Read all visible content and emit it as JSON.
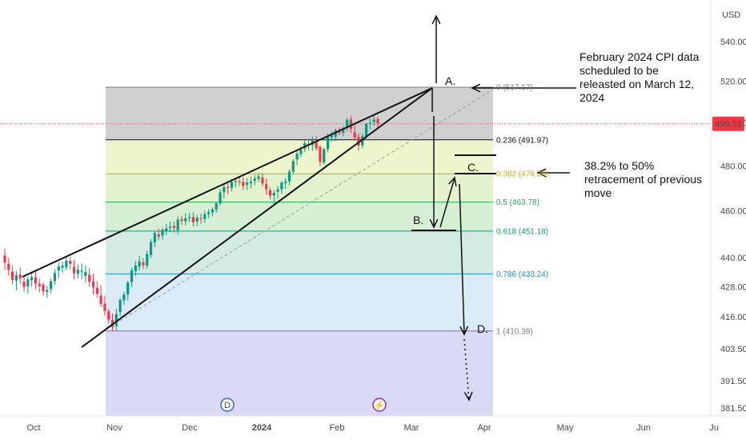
{
  "chart_data": {
    "type": "candlestick",
    "currency": "USD",
    "current_price": "499.51",
    "y_ticks": [
      "540.00",
      "520.00",
      "500.00",
      "480.00",
      "460.00",
      "440.00",
      "428.00",
      "416.00",
      "403.50",
      "391.50",
      "381.50"
    ],
    "x_ticks": [
      "Oct",
      "Nov",
      "Dec",
      "2024",
      "Feb",
      "Mar",
      "Apr",
      "May",
      "Jun",
      "Ju"
    ],
    "y_scale": "log",
    "fib_levels": [
      {
        "ratio": 0,
        "price": 517.17,
        "label": "0 (517.17)",
        "color": "#787b86"
      },
      {
        "ratio": 0.236,
        "price": 491.97,
        "label": "0.236 (491.97)",
        "color": "#111111"
      },
      {
        "ratio": 0.382,
        "price": 476.38,
        "label": "0.382 (476.38)",
        "color": "#b3b31a"
      },
      {
        "ratio": 0.5,
        "price": 463.78,
        "label": "0.5 (463.78)",
        "color": "#22a85a"
      },
      {
        "ratio": 0.618,
        "price": 451.18,
        "label": "0.618 (451.18)",
        "color": "#0a9980"
      },
      {
        "ratio": 0.786,
        "price": 433.24,
        "label": "0.786 (433.24)",
        "color": "#1d8fd0"
      },
      {
        "ratio": 1,
        "price": 410.39,
        "label": "1 (410.39)",
        "color": "#787b86"
      }
    ],
    "fib_zone_colors": [
      "#c8c8c8",
      "#eaf3c4",
      "#dcf0c4",
      "#cfeccd",
      "#cce8de",
      "#d4e6f5",
      "#e3e3e3",
      "#d3d3f6"
    ],
    "candles_ohlc": [
      [
        440.9,
        443.8,
        434.8,
        437.9
      ],
      [
        437.4,
        439.9,
        432.5,
        434.9
      ],
      [
        434.2,
        436.7,
        429.0,
        430.8
      ],
      [
        430.5,
        434.4,
        426.6,
        432.6
      ],
      [
        433.0,
        435.8,
        429.1,
        431.3
      ],
      [
        430.1,
        432.6,
        426.0,
        427.9
      ],
      [
        428.1,
        432.2,
        425.2,
        431.0
      ],
      [
        430.7,
        434.1,
        428.1,
        431.9
      ],
      [
        431.9,
        434.7,
        427.0,
        429.3
      ],
      [
        429.2,
        431.4,
        425.7,
        428.2
      ],
      [
        428.8,
        429.8,
        424.4,
        426.1
      ],
      [
        425.9,
        428.4,
        423.6,
        426.6
      ],
      [
        427.1,
        431.4,
        425.4,
        430.2
      ],
      [
        430.3,
        435.1,
        428.8,
        433.6
      ],
      [
        434.6,
        438.1,
        431.5,
        436.3
      ],
      [
        435.8,
        438.3,
        433.7,
        436.7
      ],
      [
        436.0,
        440.6,
        434.7,
        438.7
      ],
      [
        438.6,
        440.3,
        435.1,
        437.4
      ],
      [
        436.1,
        439.1,
        431.0,
        433.5
      ],
      [
        433.3,
        437.2,
        431.3,
        435.0
      ],
      [
        434.2,
        437.6,
        431.2,
        434.7
      ],
      [
        432.4,
        436.7,
        429.7,
        434.0
      ],
      [
        432.9,
        435.6,
        427.9,
        430.0
      ],
      [
        430.2,
        433.5,
        424.8,
        427.7
      ],
      [
        427.6,
        430.3,
        423.6,
        425.1
      ],
      [
        424.4,
        428.6,
        419.8,
        421.0
      ],
      [
        421.2,
        424.4,
        416.4,
        418.3
      ],
      [
        418.2,
        419.3,
        413.4,
        414.9
      ],
      [
        414.7,
        417.2,
        410.4,
        411.9
      ],
      [
        412.3,
        419.1,
        410.7,
        417.0
      ],
      [
        417.8,
        423.4,
        416.1,
        422.7
      ],
      [
        422.5,
        426.0,
        420.6,
        424.8
      ],
      [
        424.9,
        430.4,
        422.5,
        429.7
      ],
      [
        429.9,
        435.8,
        427.9,
        434.7
      ],
      [
        434.4,
        438.6,
        432.3,
        436.7
      ],
      [
        436.3,
        440.7,
        434.6,
        438.4
      ],
      [
        438.1,
        439.8,
        435.2,
        436.8
      ],
      [
        436.6,
        442.9,
        435.5,
        441.4
      ],
      [
        441.1,
        447.8,
        439.9,
        446.5
      ],
      [
        446.4,
        451.1,
        444.5,
        450.3
      ],
      [
        449.8,
        452.3,
        447.4,
        448.8
      ],
      [
        449.3,
        452.6,
        447.4,
        451.7
      ],
      [
        451.2,
        454.2,
        449.5,
        452.3
      ],
      [
        452.5,
        455.3,
        450.8,
        453.0
      ],
      [
        453.4,
        455.2,
        450.6,
        452.5
      ],
      [
        451.6,
        457.5,
        449.7,
        456.1
      ],
      [
        456.3,
        457.9,
        453.8,
        455.6
      ],
      [
        455.4,
        458.9,
        453.7,
        456.7
      ],
      [
        456.7,
        459.0,
        454.9,
        457.2
      ],
      [
        457.3,
        459.4,
        453.2,
        455.0
      ],
      [
        455.3,
        458.2,
        453.4,
        456.9
      ],
      [
        456.7,
        458.7,
        454.3,
        456.3
      ],
      [
        456.4,
        459.9,
        454.7,
        458.5
      ],
      [
        458.5,
        460.7,
        456.8,
        459.3
      ],
      [
        459.3,
        461.5,
        457.5,
        460.5
      ],
      [
        460.5,
        463.9,
        459.1,
        463.2
      ],
      [
        463.2,
        469.6,
        462.1,
        468.0
      ],
      [
        468.1,
        471.6,
        465.5,
        470.5
      ],
      [
        470.4,
        473.0,
        467.2,
        469.9
      ],
      [
        470.1,
        474.1,
        468.4,
        472.7
      ],
      [
        472.7,
        474.2,
        470.3,
        473.2
      ],
      [
        472.9,
        474.8,
        471.0,
        472.6
      ],
      [
        472.8,
        474.9,
        469.0,
        470.9
      ],
      [
        471.4,
        474.5,
        469.1,
        472.4
      ],
      [
        472.1,
        475.1,
        469.8,
        472.9
      ],
      [
        473.2,
        475.9,
        471.3,
        474.2
      ],
      [
        474.1,
        476.6,
        472.6,
        475.2
      ],
      [
        474.7,
        476.6,
        470.7,
        472.0
      ],
      [
        471.7,
        474.2,
        467.0,
        469.4
      ],
      [
        469.0,
        470.4,
        464.9,
        466.6
      ],
      [
        466.7,
        469.1,
        462.9,
        467.8
      ],
      [
        468.3,
        470.8,
        465.2,
        469.4
      ],
      [
        469.4,
        473.2,
        467.4,
        472.4
      ],
      [
        472.2,
        474.5,
        469.6,
        472.9
      ],
      [
        472.9,
        478.4,
        471.1,
        477.4
      ],
      [
        477.3,
        483.1,
        476.3,
        482.2
      ],
      [
        482.9,
        487.2,
        480.4,
        485.6
      ],
      [
        485.4,
        488.8,
        483.9,
        487.3
      ],
      [
        487.9,
        491.8,
        486.3,
        490.4
      ],
      [
        489.7,
        492.4,
        487.2,
        489.9
      ],
      [
        489.6,
        493.5,
        486.8,
        491.8
      ],
      [
        491.2,
        493.7,
        486.9,
        488.1
      ],
      [
        488.6,
        489.6,
        479.8,
        481.8
      ],
      [
        481.5,
        488.4,
        480.5,
        487.6
      ],
      [
        487.7,
        494.9,
        486.1,
        493.4
      ],
      [
        493.1,
        495.9,
        491.3,
        494.0
      ],
      [
        493.4,
        497.3,
        491.4,
        496.5
      ],
      [
        496.6,
        497.9,
        494.2,
        495.1
      ],
      [
        495.3,
        498.4,
        493.6,
        497.3
      ],
      [
        497.4,
        502.3,
        496.0,
        501.4
      ],
      [
        501.6,
        503.2,
        495.1,
        497.1
      ],
      [
        495.6,
        499.0,
        491.6,
        493.0
      ],
      [
        493.4,
        495.0,
        486.9,
        489.3
      ],
      [
        489.4,
        495.0,
        488.0,
        493.7
      ],
      [
        493.6,
        499.9,
        492.4,
        499.5
      ],
      [
        499.5,
        502.0,
        496.8,
        500.0
      ],
      [
        500.3,
        503.3,
        498.5,
        501.5
      ],
      [
        501.8,
        502.9,
        497.0,
        499.5
      ]
    ],
    "annotations": {
      "cpi_note": "February  2024 CPI data scheduled to be releasted on March 12, 2024",
      "retrace_note": "38.2% to 50% retracement of previous move",
      "point_a": "A.",
      "point_b": "B.",
      "point_c": "C.",
      "point_d": "D."
    },
    "event_markers": [
      {
        "symbol": "D",
        "color": "#2962ff"
      },
      {
        "symbol": "⚡",
        "color": "#9c27b0"
      }
    ]
  }
}
